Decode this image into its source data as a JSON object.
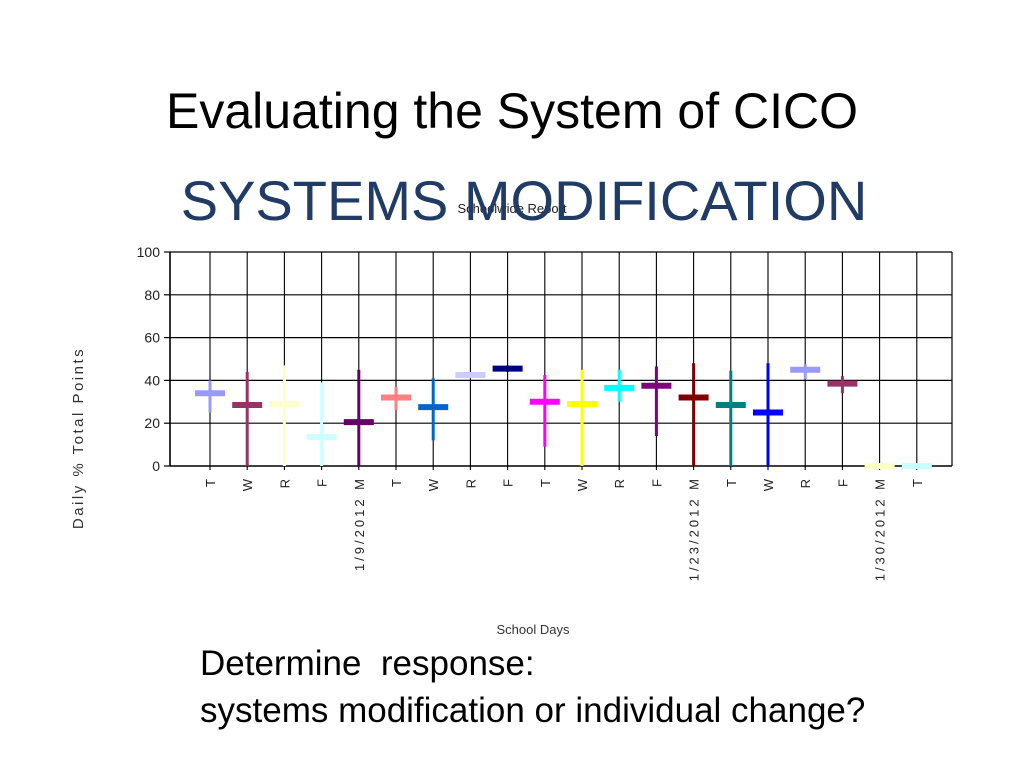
{
  "slide": {
    "title": "Evaluating the System of CICO",
    "subtitle": "SYSTEMS MODIFICATION",
    "body_line1": "Determine  response:",
    "body_line2": "systems modification or individual change?"
  },
  "colors": {
    "subtitle": "#1F3B66",
    "text": "#000000",
    "grid": "#000000"
  },
  "chart_data": {
    "type": "scatter",
    "title": "Schoolwide Report",
    "xlabel": "School Days",
    "ylabel": "Daily % Total Points",
    "ylim": [
      0,
      100
    ],
    "yticks": [
      0,
      20,
      40,
      60,
      80,
      100
    ],
    "grid": true,
    "categories": [
      "T",
      "W",
      "R",
      "F",
      "1/9/2012 M",
      "T",
      "W",
      "R",
      "F",
      "T",
      "W",
      "R",
      "F",
      "1/23/2012 M",
      "T",
      "W",
      "R",
      "F",
      "1/30/2012 M",
      "T"
    ],
    "series": [
      {
        "values": [
          34,
          28.5,
          29,
          13.5,
          20.5,
          32,
          27.5,
          42.5,
          45.5,
          30,
          29,
          36.5,
          37.5,
          32,
          28.5,
          25,
          45,
          38.5,
          0,
          0
        ],
        "low": [
          25,
          0,
          0,
          0,
          0,
          26,
          12,
          41,
          44,
          9,
          0,
          30,
          14,
          0,
          0,
          0,
          40.5,
          34,
          0,
          0
        ],
        "high": [
          40,
          44,
          47,
          39,
          45,
          37,
          41,
          44,
          47,
          42.5,
          45,
          45,
          46.5,
          48,
          44.5,
          48,
          47.5,
          42,
          0,
          0
        ],
        "colors": [
          "#9999FF",
          "#993366",
          "#FFFFCC",
          "#CCFFFF",
          "#660066",
          "#FF8080",
          "#0066CC",
          "#CCCCFF",
          "#000080",
          "#FF00FF",
          "#FFFF00",
          "#00FFFF",
          "#800080",
          "#800000",
          "#008080",
          "#0000FF",
          "#9999FF",
          "#993366",
          "#FFFFCC",
          "#CCFFFF"
        ]
      }
    ]
  }
}
